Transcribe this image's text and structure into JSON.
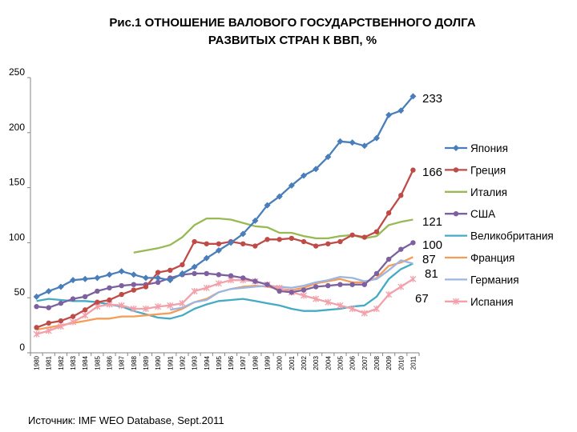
{
  "chart_data": {
    "type": "line",
    "title": "Рис.1 ОТНОШЕНИЕ ВАЛОВОГО ГОСУДАРСТВЕННОГО ДОЛГА РАЗВИТЫХ СТРАН К ВВП, %",
    "title_lines": [
      "Рис.1 ОТНОШЕНИЕ ВАЛОВОГО ГОСУДАРСТВЕННОГО ДОЛГА",
      "РАЗВИТЫХ СТРАН К ВВП, %"
    ],
    "source": "Источник: IMF WEO Database, Sept.2011",
    "xlabel": "",
    "ylabel": "",
    "ylim": [
      0,
      250
    ],
    "yticks": [
      0,
      50,
      100,
      150,
      200,
      250
    ],
    "grid": false,
    "legend_position": "right",
    "x": [
      1980,
      1981,
      1982,
      1983,
      1984,
      1985,
      1986,
      1987,
      1988,
      1989,
      1990,
      1991,
      1992,
      1993,
      1994,
      1995,
      1996,
      1997,
      1998,
      1999,
      2000,
      2001,
      2002,
      2003,
      2004,
      2005,
      2006,
      2007,
      2008,
      2009,
      2010,
      2011
    ],
    "series": [
      {
        "name": "Япония",
        "color": "#4a7ebb",
        "marker": "diamond",
        "values": [
          51,
          56,
          60,
          66,
          67,
          68,
          71,
          74,
          71,
          68,
          68,
          66,
          72,
          78,
          86,
          93,
          100,
          108,
          120,
          134,
          142,
          152,
          161,
          167,
          178,
          192,
          191,
          188,
          195,
          216,
          220,
          233
        ],
        "end_label": "233"
      },
      {
        "name": "Греция",
        "color": "#be4b48",
        "marker": "circle",
        "values": [
          23,
          27,
          29,
          33,
          39,
          46,
          48,
          53,
          57,
          60,
          73,
          75,
          80,
          101,
          99,
          99,
          101,
          99,
          97,
          103,
          103,
          104,
          101,
          97,
          99,
          101,
          107,
          105,
          110,
          127,
          143,
          166
        ],
        "end_label": "166"
      },
      {
        "name": "Италия",
        "color": "#98b954",
        "marker": "none",
        "values": [
          null,
          null,
          null,
          null,
          null,
          null,
          null,
          null,
          91,
          93,
          95,
          98,
          105,
          116,
          122,
          122,
          121,
          118,
          115,
          114,
          109,
          109,
          106,
          104,
          104,
          106,
          107,
          104,
          106,
          116,
          119,
          121
        ],
        "end_label": "121"
      },
      {
        "name": "США",
        "color": "#7d60a0",
        "marker": "circle",
        "values": [
          42,
          41,
          45,
          49,
          51,
          56,
          59,
          61,
          62,
          62,
          64,
          68,
          71,
          72,
          72,
          71,
          70,
          68,
          65,
          62,
          56,
          55,
          57,
          60,
          61,
          62,
          62,
          62,
          72,
          85,
          94,
          100
        ],
        "end_label": "100"
      },
      {
        "name": "Великобритания",
        "color": "#46aac5",
        "marker": "none",
        "values": [
          47,
          49,
          48,
          47,
          47,
          46,
          44,
          42,
          38,
          35,
          32,
          31,
          34,
          40,
          44,
          47,
          48,
          49,
          47,
          45,
          43,
          40,
          38,
          38,
          39,
          40,
          42,
          43,
          51,
          67,
          76,
          81
        ],
        "end_label": "81"
      },
      {
        "name": "Франция",
        "color": "#f59d56",
        "marker": "none",
        "values": [
          21,
          23,
          25,
          27,
          29,
          31,
          31,
          33,
          33,
          34,
          35,
          36,
          40,
          46,
          49,
          55,
          58,
          60,
          61,
          60,
          58,
          57,
          59,
          63,
          65,
          67,
          64,
          64,
          68,
          79,
          82,
          87
        ],
        "end_label": "87"
      },
      {
        "name": "Германия",
        "color": "#9db6e1",
        "marker": "none",
        "values": [
          null,
          null,
          null,
          null,
          null,
          null,
          null,
          null,
          null,
          null,
          null,
          39,
          41,
          46,
          48,
          55,
          58,
          59,
          60,
          61,
          60,
          59,
          61,
          64,
          66,
          69,
          68,
          65,
          67,
          75,
          84,
          81
        ]
      },
      {
        "name": "Испания",
        "color": "#f2a1ab",
        "marker": "asterisk",
        "values": [
          17,
          20,
          24,
          28,
          34,
          42,
          44,
          43,
          40,
          40,
          42,
          43,
          45,
          56,
          59,
          63,
          66,
          66,
          65,
          62,
          59,
          55,
          52,
          49,
          46,
          43,
          40,
          36,
          40,
          53,
          60,
          67
        ],
        "end_label": "67"
      }
    ]
  }
}
